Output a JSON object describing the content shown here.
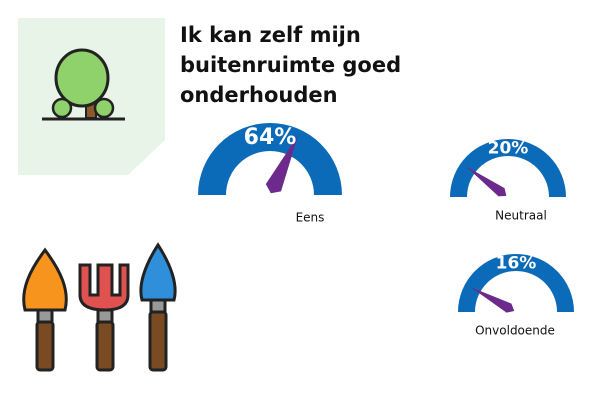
{
  "chart_data": {
    "type": "gauge",
    "title": "Ik kan zelf mijn buitenruimte goed onderhouden",
    "categories": [
      "Eens",
      "Neutraal",
      "Onvoldoende"
    ],
    "values": [
      64,
      20,
      16
    ],
    "value_labels": [
      "64%",
      "20%",
      "16%"
    ],
    "ylim": [
      0,
      100
    ],
    "color": "#0b6bb8",
    "needle_color": "#6b2a8c"
  }
}
